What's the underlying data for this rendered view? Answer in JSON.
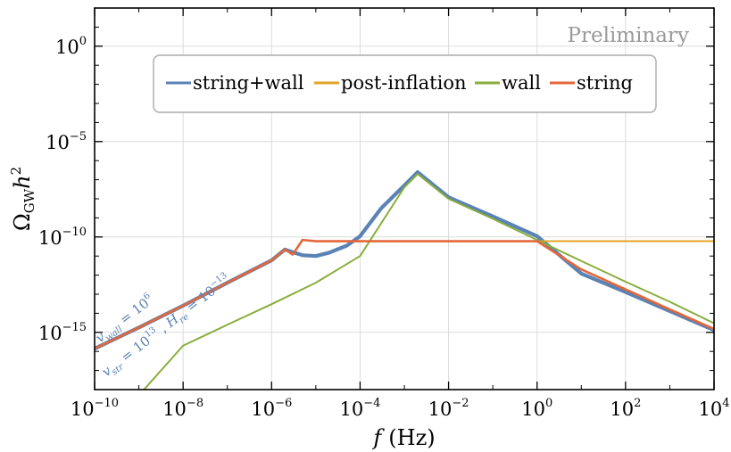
{
  "chart_data": {
    "type": "line",
    "title": "",
    "watermark": "Preliminary",
    "xlabel": {
      "var": "f",
      "unit": "(Hz)"
    },
    "ylabel": {
      "base": "Ω",
      "sub": "GW",
      "var": "h",
      "sup": "2"
    },
    "xscale": "log",
    "yscale": "log",
    "xlim": [
      1e-10,
      10000.0
    ],
    "ylim": [
      1e-18,
      100.0
    ],
    "grid": true,
    "legend_position": "upper-center",
    "x_ticks": [
      {
        "base": "10",
        "exp": "−10"
      },
      {
        "base": "10",
        "exp": "−8"
      },
      {
        "base": "10",
        "exp": "−6"
      },
      {
        "base": "10",
        "exp": "−4"
      },
      {
        "base": "10",
        "exp": "−2"
      },
      {
        "base": "10",
        "exp": "0"
      },
      {
        "base": "10",
        "exp": "2"
      },
      {
        "base": "10",
        "exp": "4"
      }
    ],
    "y_ticks": [
      {
        "base": "10",
        "exp": "0"
      },
      {
        "base": "10",
        "exp": "−5"
      },
      {
        "base": "10",
        "exp": "−10"
      },
      {
        "base": "10",
        "exp": "−15"
      }
    ],
    "annotations": [
      {
        "var": "v",
        "sub": "wall",
        "rest": " = 10",
        "sup": "6"
      },
      {
        "var": "v",
        "sub": "str",
        "rest": " = 10",
        "sup": "13",
        "rest2": " , ",
        "var2": "H",
        "sub2": "re",
        "rest3": " = 10",
        "sup2": "−13"
      }
    ],
    "series": [
      {
        "name": "string+wall",
        "color": "#5b82b5",
        "x": [
          1e-10,
          1e-09,
          1e-08,
          1e-07,
          1e-06,
          2e-06,
          3e-06,
          5e-06,
          1e-05,
          2e-05,
          5e-05,
          0.0001,
          0.0003,
          0.001,
          0.002,
          0.01,
          0.1,
          1,
          10,
          100,
          1000,
          10000
        ],
        "y": [
          1.4e-16,
          1.8e-15,
          2.5e-14,
          4e-13,
          6e-12,
          2.2e-11,
          1.6e-11,
          1.1e-11,
          1e-11,
          1.5e-11,
          3.5e-11,
          1.1e-10,
          3.2e-09,
          5e-08,
          2.5e-07,
          1.2e-08,
          1.2e-09,
          1.1e-10,
          1.2e-12,
          1.3e-13,
          1.3e-14,
          1.3e-15
        ]
      },
      {
        "name": "post-inflation",
        "color": "#e1a426",
        "x": [
          3e-05,
          0.0001,
          0.001,
          0.01,
          0.1,
          1,
          10,
          100,
          1000,
          10000
        ],
        "y": [
          6e-11,
          6e-11,
          6e-11,
          6e-11,
          6e-11,
          6e-11,
          6e-11,
          6e-11,
          6e-11,
          6e-11
        ]
      },
      {
        "name": "wall",
        "color": "#89ae3c",
        "x": [
          1e-09,
          1e-08,
          1e-07,
          1e-06,
          1e-05,
          0.0001,
          0.001,
          0.002,
          0.01,
          0.1,
          1,
          10,
          100,
          1000,
          10000
        ],
        "y": [
          5e-19,
          2e-16,
          2.5e-15,
          3e-14,
          4e-13,
          1e-11,
          4e-08,
          2e-07,
          1e-08,
          9e-10,
          7e-11,
          5.5e-12,
          4.5e-13,
          4e-14,
          3e-15
        ]
      },
      {
        "name": "string",
        "color": "#e4673a",
        "x": [
          1e-10,
          1e-09,
          1e-08,
          1e-07,
          1e-06,
          2e-06,
          3e-06,
          5e-06,
          1e-05,
          0.0001,
          0.001,
          0.01,
          0.1,
          1,
          10,
          100,
          1000,
          10000
        ],
        "y": [
          1.4e-16,
          1.8e-15,
          2.5e-14,
          4e-13,
          6e-12,
          2.2e-11,
          1.2e-11,
          7e-11,
          6e-11,
          6e-11,
          6e-11,
          6e-11,
          6e-11,
          6e-11,
          2e-12,
          1.8e-13,
          1.6e-14,
          1.5e-15
        ]
      }
    ]
  }
}
